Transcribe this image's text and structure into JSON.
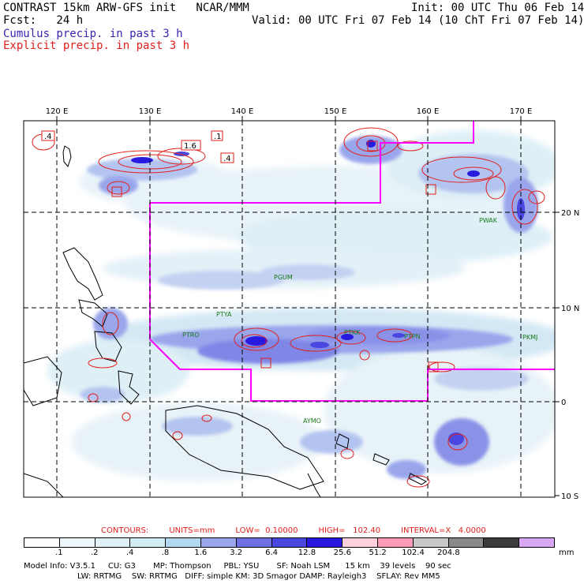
{
  "header": {
    "title": "CONTRAST 15km ARW-GFS init   NCAR/MMM",
    "fcst": "Fcst:   24 h",
    "init": "Init: 00 UTC Thu 06 Feb 14",
    "valid": "Valid: 00 UTC Fri 07 Feb 14 (10 ChT Fri 07 Feb 14)",
    "legend_cumulus": "Cumulus precip. in past 3 h",
    "legend_explicit": "Explicit precip. in past 3 h"
  },
  "colors": {
    "cumulus_text": "#3a24b0",
    "explicit_text": "#e0201c",
    "boundary": "#ff00ff",
    "contour": "#e0201c",
    "station": "#1a7a1a",
    "heavy_precip": "#2a1ae0"
  },
  "map": {
    "lon_labels": [
      "120 E",
      "130 E",
      "140 E",
      "150 E",
      "160 E",
      "170 E"
    ],
    "lat_labels": [
      "20 N",
      "10 N",
      "0",
      "10 S"
    ],
    "stations": [
      "PWAK",
      "PGUM",
      "PTYA",
      "PTRO",
      "PTKK",
      "PTPN",
      "PKMJ",
      "AYMO"
    ],
    "contour_labels": [
      ".4",
      "1.6",
      ".1",
      ".4",
      ".1"
    ]
  },
  "contours_info": {
    "label": "CONTOURS:",
    "units": "UNITS=mm",
    "low": "LOW=  0.10000",
    "high": "HIGH=   102.40",
    "interval": "INTERVAL=X   4.0000"
  },
  "colorbar": {
    "labels": [
      ".1",
      ".2",
      ".4",
      ".8",
      "1.6",
      "3.2",
      "6.4",
      "12.8",
      "25.6",
      "51.2",
      "102.4",
      "204.8"
    ],
    "unit": "mm",
    "colors": [
      "#ffffff",
      "#eef7fb",
      "#dff0f6",
      "#d2eef4",
      "#b4d8f2",
      "#9aa6ec",
      "#6f6fe4",
      "#4a46e0",
      "#2a1ae0",
      "#ffd1dc",
      "#ff9bb8",
      "#c8c8c8",
      "#8a8a8a",
      "#3c3c3c",
      "#d8a8f4"
    ]
  },
  "model_info": {
    "line1": "Model Info: V3.5.1     CU: G3       MP: Thompson     PBL: YSU       SF: Noah LSM      15 km    39 levels    90 sec",
    "line2": "LW: RRTMG    SW: RRTMG   DIFF: simple KM: 3D Smagor DAMP: Rayleigh3    SFLAY: Rev MM5"
  }
}
